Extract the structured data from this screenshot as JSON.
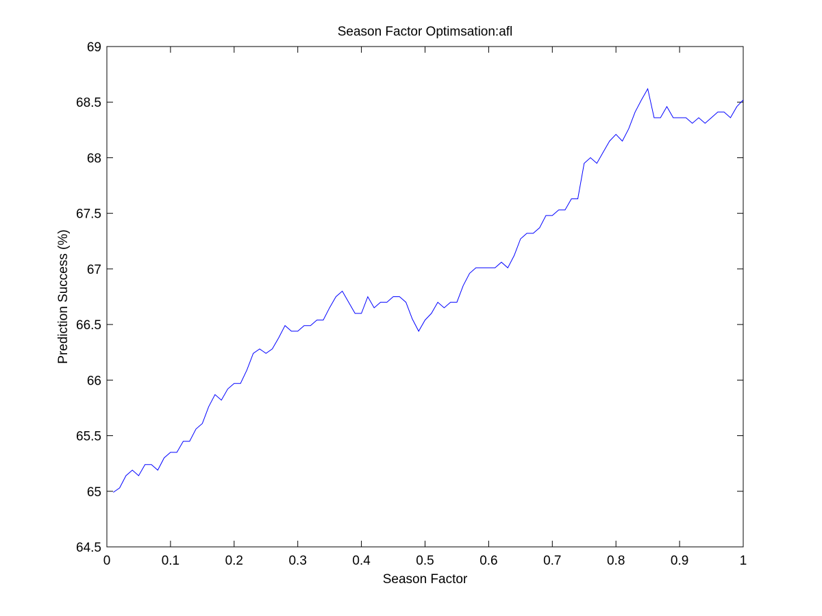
{
  "chart_data": {
    "type": "line",
    "title": "Season Factor Optimsation:afl",
    "xlabel": "Season Factor",
    "ylabel": "Prediction Success (%)",
    "xlim": [
      0,
      1
    ],
    "ylim": [
      64.5,
      69
    ],
    "xticks": [
      "0",
      "0.1",
      "0.2",
      "0.3",
      "0.4",
      "0.5",
      "0.6",
      "0.7",
      "0.8",
      "0.9",
      "1"
    ],
    "yticks": [
      "64.5",
      "65",
      "65.5",
      "66",
      "66.5",
      "67",
      "67.5",
      "68",
      "68.5",
      "69"
    ],
    "grid": false,
    "line_color": "#0000ff",
    "series": [
      {
        "x": [
          0.01,
          0.02,
          0.03,
          0.04,
          0.05,
          0.06,
          0.07,
          0.08,
          0.09,
          0.1,
          0.11,
          0.12,
          0.13,
          0.14,
          0.15,
          0.16,
          0.17,
          0.18,
          0.19,
          0.2,
          0.21,
          0.22,
          0.23,
          0.24,
          0.25,
          0.26,
          0.27,
          0.28,
          0.29,
          0.3,
          0.31,
          0.32,
          0.33,
          0.34,
          0.35,
          0.36,
          0.37,
          0.38,
          0.39,
          0.4,
          0.41,
          0.42,
          0.43,
          0.44,
          0.45,
          0.46,
          0.47,
          0.48,
          0.49,
          0.5,
          0.51,
          0.52,
          0.53,
          0.54,
          0.55,
          0.56,
          0.57,
          0.58,
          0.59,
          0.6,
          0.61,
          0.62,
          0.63,
          0.64,
          0.65,
          0.66,
          0.67,
          0.68,
          0.69,
          0.7,
          0.71,
          0.72,
          0.73,
          0.74,
          0.75,
          0.76,
          0.77,
          0.78,
          0.79,
          0.8,
          0.81,
          0.82,
          0.83,
          0.84,
          0.85,
          0.86,
          0.87,
          0.88,
          0.89,
          0.9,
          0.91,
          0.92,
          0.93,
          0.94,
          0.95,
          0.96,
          0.97,
          0.98,
          0.99,
          1.0
        ],
        "y": [
          64.99,
          65.03,
          65.14,
          65.19,
          65.14,
          65.24,
          65.24,
          65.19,
          65.3,
          65.35,
          65.35,
          65.45,
          65.45,
          65.56,
          65.61,
          65.76,
          65.87,
          65.82,
          65.92,
          65.97,
          65.97,
          66.09,
          66.24,
          66.28,
          66.24,
          66.28,
          66.38,
          66.49,
          66.44,
          66.44,
          66.49,
          66.49,
          66.54,
          66.54,
          66.65,
          66.75,
          66.8,
          66.7,
          66.6,
          66.6,
          66.75,
          66.65,
          66.7,
          66.7,
          66.75,
          66.75,
          66.7,
          66.55,
          66.44,
          66.54,
          66.6,
          66.7,
          66.65,
          66.7,
          66.7,
          66.85,
          66.96,
          67.01,
          67.01,
          67.01,
          67.01,
          67.06,
          67.01,
          67.12,
          67.27,
          67.32,
          67.32,
          67.37,
          67.48,
          67.48,
          67.53,
          67.53,
          67.63,
          67.63,
          67.95,
          68.0,
          67.95,
          68.05,
          68.15,
          68.21,
          68.15,
          68.26,
          68.41,
          68.52,
          68.62,
          68.36,
          68.36,
          68.46,
          68.36,
          68.36,
          68.36,
          68.31,
          68.36,
          68.31,
          68.36,
          68.41,
          68.41,
          68.36,
          68.46,
          68.52
        ]
      }
    ]
  }
}
